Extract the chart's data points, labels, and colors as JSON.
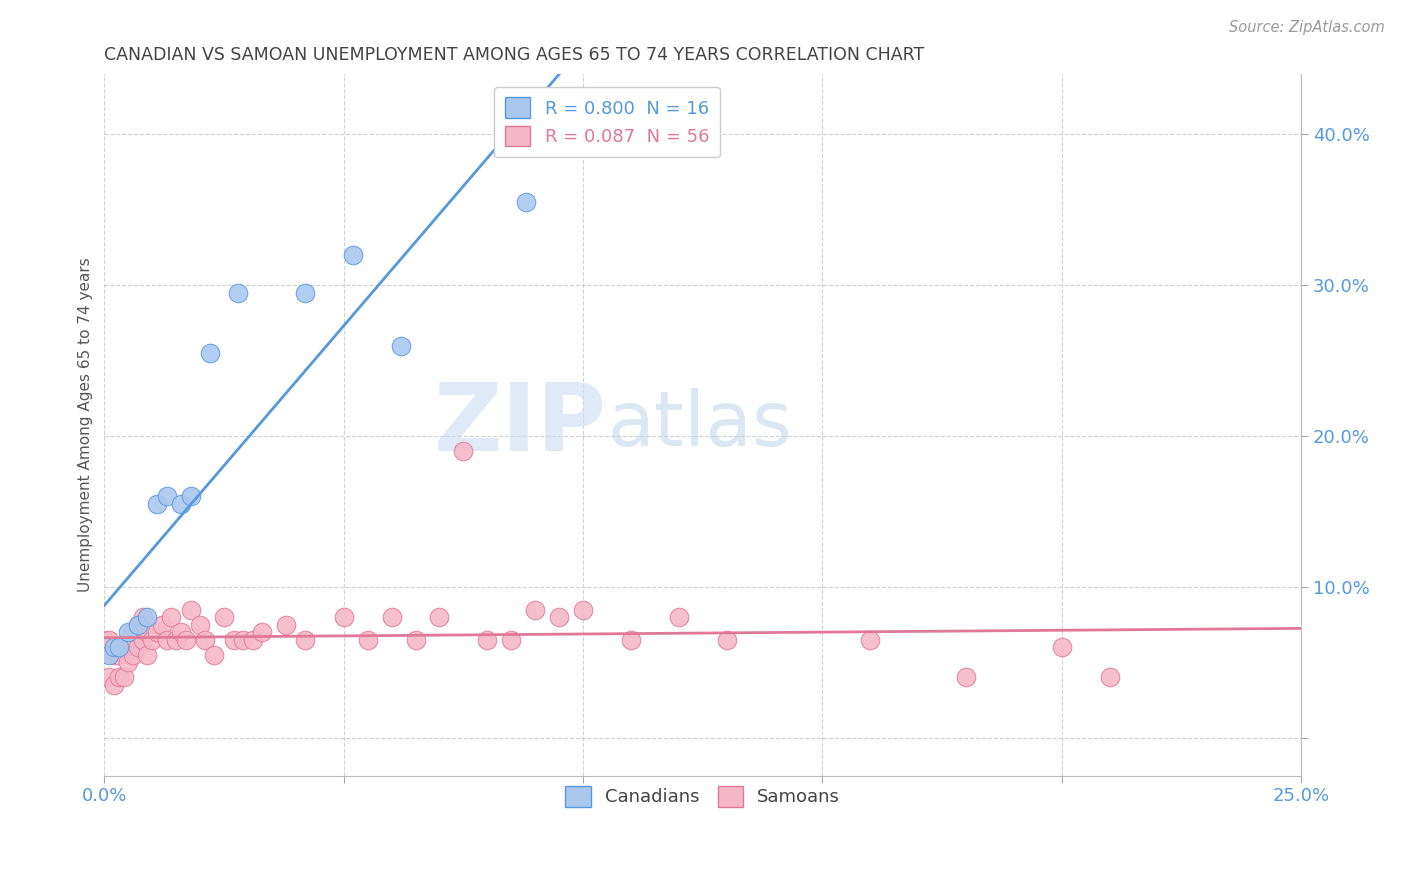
{
  "title": "CANADIAN VS SAMOAN UNEMPLOYMENT AMONG AGES 65 TO 74 YEARS CORRELATION CHART",
  "source": "Source: ZipAtlas.com",
  "ylabel": "Unemployment Among Ages 65 to 74 years",
  "xlim": [
    0.0,
    0.25
  ],
  "ylim": [
    -0.025,
    0.44
  ],
  "xticks": [
    0.0,
    0.05,
    0.1,
    0.15,
    0.2,
    0.25
  ],
  "xticklabels": [
    "0.0%",
    "",
    "",
    "",
    "",
    "25.0%"
  ],
  "yticks": [
    0.0,
    0.1,
    0.2,
    0.3,
    0.4
  ],
  "yticklabels": [
    "",
    "10.0%",
    "20.0%",
    "30.0%",
    "40.0%"
  ],
  "background_color": "#ffffff",
  "grid_color": "#cccccc",
  "canadian_color": "#aac8ee",
  "samoan_color": "#f5b8c8",
  "canadian_line_color": "#5599dd",
  "samoan_line_color": "#e07898",
  "r_canadian": 0.8,
  "n_canadian": 16,
  "r_samoan": 0.087,
  "n_samoan": 56,
  "watermark_zip": "ZIP",
  "watermark_atlas": "atlas",
  "canadians_x": [
    0.001,
    0.002,
    0.003,
    0.005,
    0.007,
    0.009,
    0.011,
    0.013,
    0.016,
    0.018,
    0.022,
    0.028,
    0.042,
    0.052,
    0.062,
    0.088
  ],
  "canadians_y": [
    0.055,
    0.06,
    0.06,
    0.07,
    0.075,
    0.08,
    0.155,
    0.16,
    0.155,
    0.16,
    0.255,
    0.295,
    0.295,
    0.32,
    0.26,
    0.355
  ],
  "samoans_x": [
    0.0,
    0.001,
    0.001,
    0.002,
    0.002,
    0.003,
    0.003,
    0.004,
    0.004,
    0.005,
    0.005,
    0.006,
    0.006,
    0.007,
    0.007,
    0.008,
    0.008,
    0.009,
    0.009,
    0.01,
    0.011,
    0.012,
    0.013,
    0.014,
    0.015,
    0.016,
    0.017,
    0.018,
    0.02,
    0.021,
    0.023,
    0.025,
    0.027,
    0.029,
    0.031,
    0.033,
    0.038,
    0.042,
    0.05,
    0.055,
    0.06,
    0.065,
    0.07,
    0.075,
    0.08,
    0.085,
    0.09,
    0.095,
    0.1,
    0.11,
    0.12,
    0.13,
    0.16,
    0.18,
    0.2,
    0.21
  ],
  "samoans_y": [
    0.065,
    0.04,
    0.065,
    0.035,
    0.055,
    0.04,
    0.055,
    0.04,
    0.06,
    0.05,
    0.065,
    0.055,
    0.07,
    0.06,
    0.075,
    0.065,
    0.08,
    0.055,
    0.07,
    0.065,
    0.07,
    0.075,
    0.065,
    0.08,
    0.065,
    0.07,
    0.065,
    0.085,
    0.075,
    0.065,
    0.055,
    0.08,
    0.065,
    0.065,
    0.065,
    0.07,
    0.075,
    0.065,
    0.08,
    0.065,
    0.08,
    0.065,
    0.08,
    0.19,
    0.065,
    0.065,
    0.085,
    0.08,
    0.085,
    0.065,
    0.08,
    0.065,
    0.065,
    0.04,
    0.06,
    0.04
  ]
}
